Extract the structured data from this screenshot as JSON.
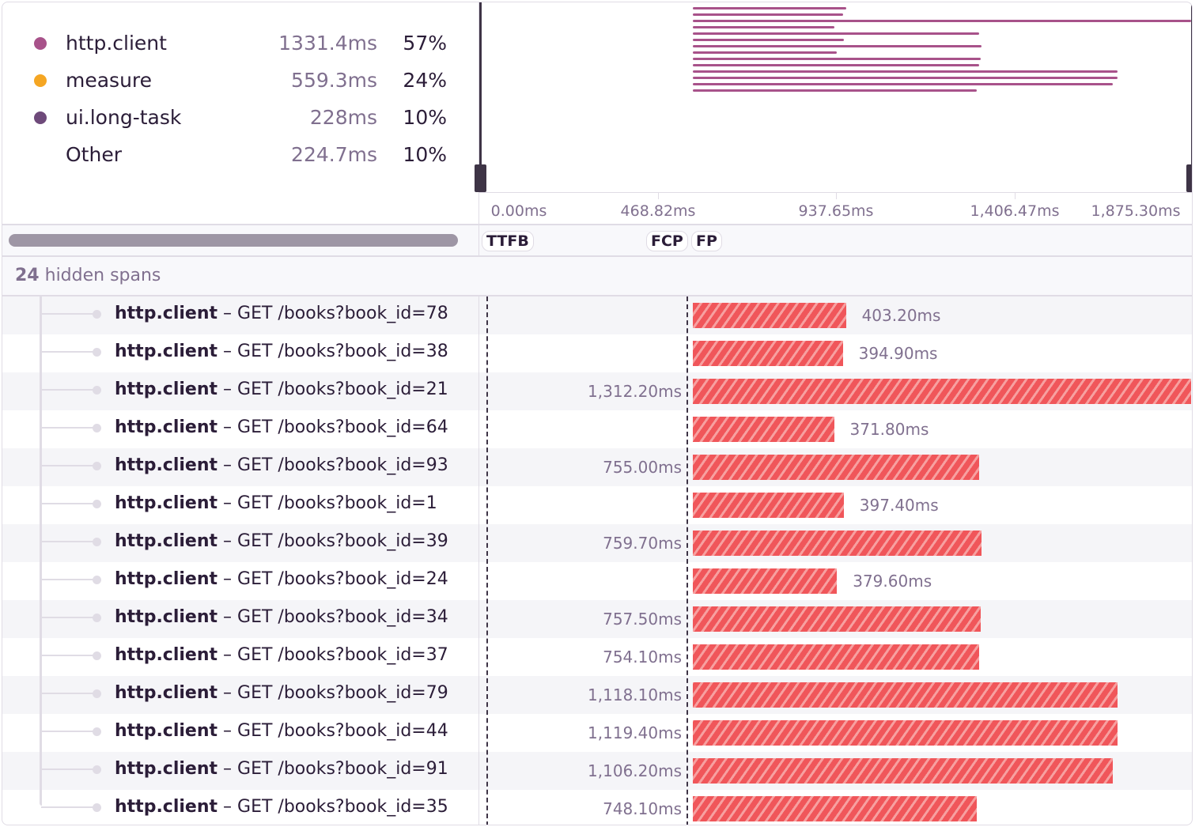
{
  "legend": [
    {
      "name": "http.client",
      "duration": "1331.4ms",
      "percent": "57%",
      "color": "#a8528a"
    },
    {
      "name": "measure",
      "duration": "559.3ms",
      "percent": "24%",
      "color": "#f5a623"
    },
    {
      "name": "ui.long-task",
      "duration": "228ms",
      "percent": "10%",
      "color": "#6e4a7a"
    },
    {
      "name": "Other",
      "duration": "224.7ms",
      "percent": "10%",
      "color": ""
    }
  ],
  "axis": {
    "ticks": [
      "0.00ms",
      "468.82ms",
      "937.65ms",
      "1,406.47ms",
      "1,875.30ms"
    ]
  },
  "markers": [
    "TTFB",
    "FCP",
    "FP"
  ],
  "hidden_spans": {
    "count": "24",
    "label": "hidden spans"
  },
  "span_color": "#f0565a",
  "spans": [
    {
      "op": "http.client",
      "desc": "GET /books?book_id=78",
      "duration": "403.20ms",
      "ms": 403.2
    },
    {
      "op": "http.client",
      "desc": "GET /books?book_id=38",
      "duration": "394.90ms",
      "ms": 394.9
    },
    {
      "op": "http.client",
      "desc": "GET /books?book_id=21",
      "duration": "1,312.20ms",
      "ms": 1312.2
    },
    {
      "op": "http.client",
      "desc": "GET /books?book_id=64",
      "duration": "371.80ms",
      "ms": 371.8
    },
    {
      "op": "http.client",
      "desc": "GET /books?book_id=93",
      "duration": "755.00ms",
      "ms": 755.0
    },
    {
      "op": "http.client",
      "desc": "GET /books?book_id=1",
      "duration": "397.40ms",
      "ms": 397.4
    },
    {
      "op": "http.client",
      "desc": "GET /books?book_id=39",
      "duration": "759.70ms",
      "ms": 759.7
    },
    {
      "op": "http.client",
      "desc": "GET /books?book_id=24",
      "duration": "379.60ms",
      "ms": 379.6
    },
    {
      "op": "http.client",
      "desc": "GET /books?book_id=34",
      "duration": "757.50ms",
      "ms": 757.5
    },
    {
      "op": "http.client",
      "desc": "GET /books?book_id=37",
      "duration": "754.10ms",
      "ms": 754.1
    },
    {
      "op": "http.client",
      "desc": "GET /books?book_id=79",
      "duration": "1,118.10ms",
      "ms": 1118.1
    },
    {
      "op": "http.client",
      "desc": "GET /books?book_id=44",
      "duration": "1,119.40ms",
      "ms": 1119.4
    },
    {
      "op": "http.client",
      "desc": "GET /books?book_id=91",
      "duration": "1,106.20ms",
      "ms": 1106.2
    },
    {
      "op": "http.client",
      "desc": "GET /books?book_id=35",
      "duration": "748.10ms",
      "ms": 748.1
    }
  ]
}
